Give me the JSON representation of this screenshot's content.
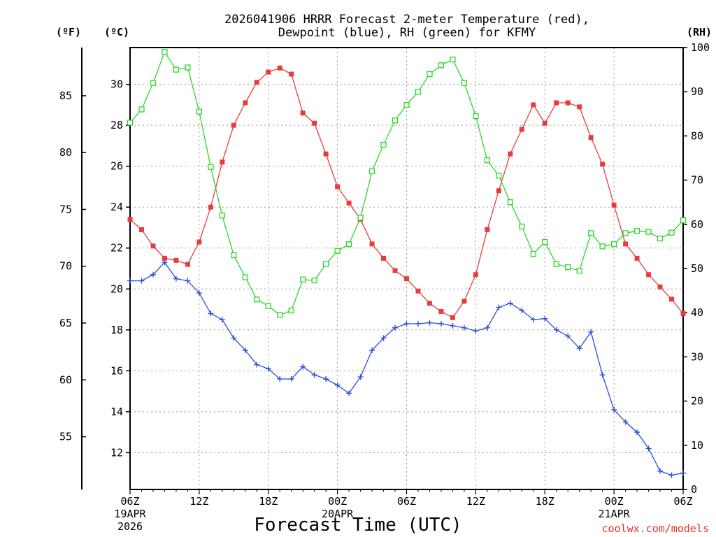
{
  "chart_data": {
    "type": "line",
    "title": "2026041906 HRRR Forecast 2-meter Temperature (red),",
    "subtitle": "Dewpoint (blue), RH (green) for KFMY",
    "xlabel": "Forecast Time (UTC)",
    "credit": "coolwx.com/models",
    "left_unit_f": "(ºF)",
    "left_unit_c": "(ºC)",
    "right_unit": "(RH)",
    "x_range_hours": [
      0,
      48
    ],
    "ylim_c": [
      10.2,
      31.8
    ],
    "ylim_rh": [
      0,
      100
    ],
    "fahrenheit_ticks": [
      "55",
      "60",
      "65",
      "70",
      "75",
      "80",
      "85"
    ],
    "celsius_ticks": [
      "12",
      "14",
      "16",
      "18",
      "20",
      "22",
      "24",
      "26",
      "28",
      "30"
    ],
    "rh_ticks": [
      "0",
      "10",
      "20",
      "30",
      "40",
      "50",
      "60",
      "70",
      "80",
      "90",
      "100"
    ],
    "x_ticks": [
      {
        "label": "06Z",
        "sub1": "19APR",
        "sub2": "2026"
      },
      {
        "label": "12Z",
        "sub1": "",
        "sub2": ""
      },
      {
        "label": "18Z",
        "sub1": "",
        "sub2": ""
      },
      {
        "label": "00Z",
        "sub1": "20APR",
        "sub2": ""
      },
      {
        "label": "06Z",
        "sub1": "",
        "sub2": ""
      },
      {
        "label": "12Z",
        "sub1": "",
        "sub2": ""
      },
      {
        "label": "18Z",
        "sub1": "",
        "sub2": ""
      },
      {
        "label": "00Z",
        "sub1": "21APR",
        "sub2": ""
      },
      {
        "label": "06Z",
        "sub1": "",
        "sub2": ""
      }
    ],
    "series": [
      {
        "name": "2-meter Temperature (°C)",
        "color": "#e83c3c",
        "marker": "square-filled",
        "axis": "celsius",
        "values": [
          23.4,
          22.9,
          22.1,
          21.5,
          21.4,
          21.2,
          22.3,
          24.0,
          26.2,
          28.0,
          29.1,
          30.1,
          30.6,
          30.8,
          30.5,
          28.6,
          28.1,
          26.6,
          25.0,
          24.2,
          23.4,
          22.2,
          21.5,
          20.9,
          20.5,
          19.9,
          19.3,
          18.9,
          18.6,
          19.4,
          20.7,
          22.9,
          24.8,
          26.6,
          27.8,
          29.0,
          28.1,
          29.1,
          29.1,
          28.9,
          27.4,
          26.1,
          24.1,
          22.2,
          21.5,
          20.7,
          20.1,
          19.5,
          18.8
        ]
      },
      {
        "name": "Dewpoint (°C)",
        "color": "#2a4fd8",
        "marker": "plus",
        "axis": "celsius",
        "values": [
          20.4,
          20.4,
          20.7,
          21.3,
          20.5,
          20.4,
          19.8,
          18.8,
          18.5,
          17.6,
          17.0,
          16.3,
          16.1,
          15.6,
          15.6,
          16.2,
          15.8,
          15.6,
          15.3,
          14.9,
          15.7,
          17.0,
          17.6,
          18.1,
          18.3,
          18.3,
          18.35,
          18.3,
          18.2,
          18.1,
          17.95,
          18.1,
          19.1,
          19.3,
          18.95,
          18.5,
          18.55,
          18.0,
          17.7,
          17.1,
          17.9,
          15.8,
          14.1,
          13.5,
          13.0,
          12.2,
          11.1,
          10.9,
          11.0
        ]
      },
      {
        "name": "RH (%)",
        "color": "#2ad82a",
        "marker": "square-open",
        "axis": "rh",
        "values": [
          83,
          86,
          92,
          99,
          95,
          95.5,
          85.5,
          73,
          62,
          53,
          48,
          43,
          41.5,
          39.5,
          40.5,
          47.5,
          47.3,
          51,
          54,
          55.5,
          61.5,
          72,
          78,
          83.5,
          87,
          90,
          94,
          96,
          97.3,
          92,
          84.5,
          74.5,
          71,
          65,
          59.5,
          53.3,
          56,
          51,
          50.3,
          49.5,
          58,
          55,
          55.5,
          58,
          58.5,
          58.3,
          56.8,
          58.1,
          60.9
        ]
      }
    ]
  }
}
